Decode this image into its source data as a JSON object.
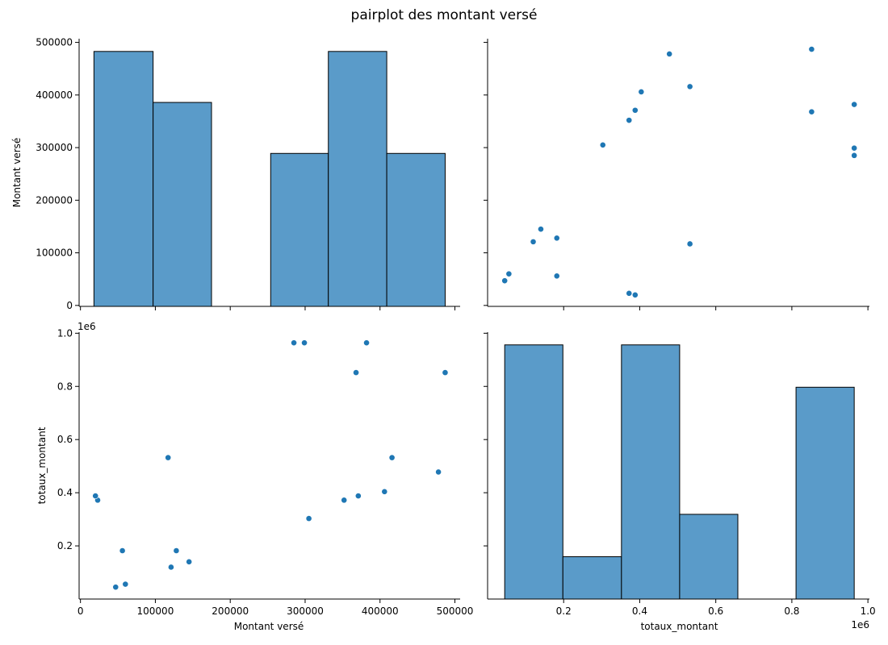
{
  "chart_data": {
    "type": "pairplot",
    "title": "pairplot des montant versé",
    "variables": [
      "Montant versé",
      "totaux_montant"
    ],
    "colors": {
      "fill": "#5a9bc9",
      "edge": "#000000",
      "point": "#1f77b4"
    },
    "offset_label": "1e6",
    "panels": {
      "hist_montant": {
        "type": "bar",
        "bins": [
          {
            "x0": 18000,
            "x1": 97000,
            "height": 5
          },
          {
            "x0": 97000,
            "x1": 175000,
            "height": 4
          },
          {
            "x0": 175000,
            "x1": 254000,
            "height": 0
          },
          {
            "x0": 254000,
            "x1": 331000,
            "height": 3
          },
          {
            "x0": 331000,
            "x1": 409000,
            "height": 5
          },
          {
            "x0": 409000,
            "x1": 487000,
            "height": 3
          }
        ]
      },
      "hist_totaux": {
        "type": "bar",
        "bins": [
          {
            "x0": 0.045,
            "x1": 0.198,
            "height": 6
          },
          {
            "x0": 0.198,
            "x1": 0.352,
            "height": 1
          },
          {
            "x0": 0.352,
            "x1": 0.505,
            "height": 6
          },
          {
            "x0": 0.505,
            "x1": 0.658,
            "height": 2
          },
          {
            "x0": 0.658,
            "x1": 0.811,
            "height": 0
          },
          {
            "x0": 0.811,
            "x1": 0.964,
            "height": 5
          }
        ]
      },
      "scatter": {
        "type": "scatter",
        "points": [
          {
            "montant": 478000,
            "totaux": 0.478
          },
          {
            "montant": 487000,
            "totaux": 0.852
          },
          {
            "montant": 406000,
            "totaux": 0.404
          },
          {
            "montant": 416000,
            "totaux": 0.532
          },
          {
            "montant": 371000,
            "totaux": 0.388
          },
          {
            "montant": 352000,
            "totaux": 0.372
          },
          {
            "montant": 368000,
            "totaux": 0.852
          },
          {
            "montant": 382000,
            "totaux": 0.964
          },
          {
            "montant": 305000,
            "totaux": 0.303
          },
          {
            "montant": 299000,
            "totaux": 0.964
          },
          {
            "montant": 285000,
            "totaux": 0.964
          },
          {
            "montant": 145000,
            "totaux": 0.14
          },
          {
            "montant": 128000,
            "totaux": 0.182
          },
          {
            "montant": 121000,
            "totaux": 0.12
          },
          {
            "montant": 117000,
            "totaux": 0.532
          },
          {
            "montant": 60000,
            "totaux": 0.056
          },
          {
            "montant": 56000,
            "totaux": 0.182
          },
          {
            "montant": 47000,
            "totaux": 0.045
          },
          {
            "montant": 23000,
            "totaux": 0.372
          },
          {
            "montant": 20000,
            "totaux": 0.388
          }
        ]
      }
    },
    "axes": {
      "montant": {
        "label": "Montant versé",
        "range": [
          -1800,
          507000
        ],
        "ticks": [
          0,
          100000,
          200000,
          300000,
          400000,
          500000
        ],
        "tick_labels": [
          "0",
          "100000",
          "200000",
          "300000",
          "400000",
          "500000"
        ]
      },
      "totaux": {
        "label": "totaux_montant",
        "range": [
          0.0,
          1.004
        ],
        "ticks": [
          0.2,
          0.4,
          0.6,
          0.8,
          1.0
        ],
        "tick_labels": [
          "0.2",
          "0.4",
          "0.6",
          "0.8",
          "1.0"
        ]
      },
      "hist_montant_count_max": 5.25,
      "hist_totaux_count_max": 6.3
    }
  }
}
